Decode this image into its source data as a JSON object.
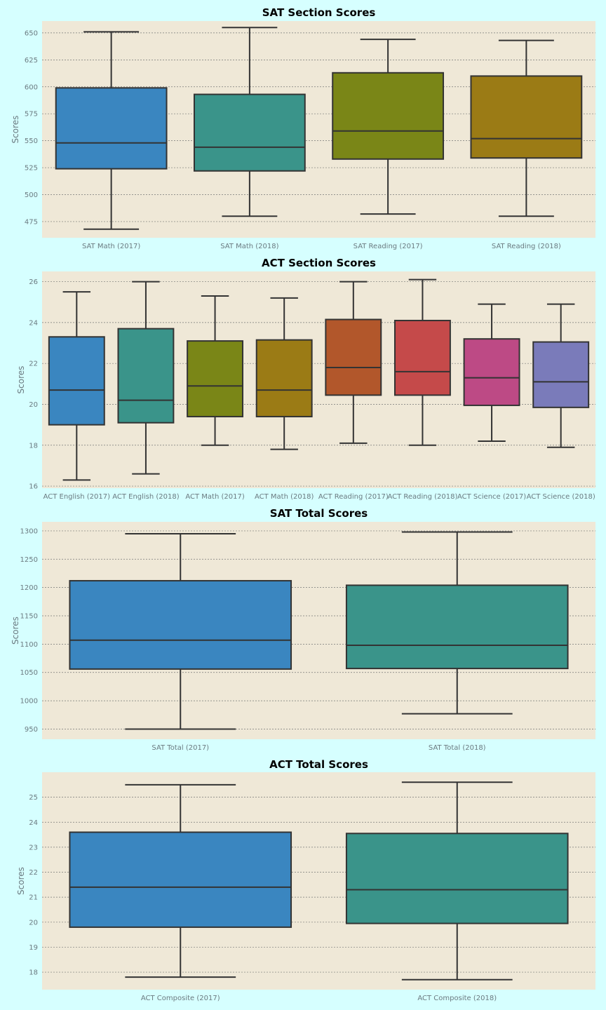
{
  "chart_data": [
    {
      "type": "box",
      "title": "SAT Section Scores",
      "ylabel": "Scores",
      "ylim": [
        460,
        661
      ],
      "yticks": [
        475,
        500,
        525,
        550,
        575,
        600,
        625,
        650
      ],
      "grid": true,
      "boxes": [
        {
          "label": "SAT Math (2017)",
          "min": 468,
          "q1": 524,
          "median": 548,
          "q3": 599,
          "max": 651,
          "color": "#3a86c0"
        },
        {
          "label": "SAT Math (2018)",
          "min": 480,
          "q1": 522,
          "median": 544,
          "q3": 593,
          "max": 655,
          "color": "#3a948a"
        },
        {
          "label": "SAT Reading (2017)",
          "min": 482,
          "q1": 533,
          "median": 559,
          "q3": 613,
          "max": 644,
          "color": "#7a8617"
        },
        {
          "label": "SAT Reading (2018)",
          "min": 480,
          "q1": 534,
          "median": 552,
          "q3": 610,
          "max": 643,
          "color": "#9b7b15"
        }
      ]
    },
    {
      "type": "box",
      "title": "ACT Section Scores",
      "ylabel": "Scores",
      "ylim": [
        15.9,
        26.5
      ],
      "yticks": [
        16,
        18,
        20,
        22,
        24,
        26
      ],
      "grid": true,
      "boxes": [
        {
          "label": "ACT English (2017)",
          "min": 16.3,
          "q1": 19.0,
          "median": 20.7,
          "q3": 23.3,
          "max": 25.5,
          "color": "#3a86c0"
        },
        {
          "label": "ACT English (2018)",
          "min": 16.6,
          "q1": 19.1,
          "median": 20.2,
          "q3": 23.7,
          "max": 26.0,
          "color": "#3a948a"
        },
        {
          "label": "ACT Math (2017)",
          "min": 18.0,
          "q1": 19.4,
          "median": 20.9,
          "q3": 23.1,
          "max": 25.3,
          "color": "#7a8617"
        },
        {
          "label": "ACT Math (2018)",
          "min": 17.8,
          "q1": 19.4,
          "median": 20.7,
          "q3": 23.15,
          "max": 25.2,
          "color": "#9b7b15"
        },
        {
          "label": "ACT Reading (2017)",
          "min": 18.1,
          "q1": 20.45,
          "median": 21.8,
          "q3": 24.15,
          "max": 26.0,
          "color": "#b2572b"
        },
        {
          "label": "ACT Reading (2018)",
          "min": 18.0,
          "q1": 20.45,
          "median": 21.6,
          "q3": 24.1,
          "max": 26.1,
          "color": "#c54a4a"
        },
        {
          "label": "ACT Science (2017)",
          "min": 18.2,
          "q1": 19.95,
          "median": 21.3,
          "q3": 23.2,
          "max": 24.9,
          "color": "#bd4a85"
        },
        {
          "label": "ACT Science (2018)",
          "min": 17.9,
          "q1": 19.85,
          "median": 21.1,
          "q3": 23.05,
          "max": 24.9,
          "color": "#7a7bba"
        }
      ]
    },
    {
      "type": "box",
      "title": "SAT Total Scores",
      "ylabel": "Scores",
      "ylim": [
        932,
        1316
      ],
      "yticks": [
        950,
        1000,
        1050,
        1100,
        1150,
        1200,
        1250,
        1300
      ],
      "grid": true,
      "boxes": [
        {
          "label": "SAT Total (2017)",
          "min": 950,
          "q1": 1056,
          "median": 1107,
          "q3": 1212,
          "max": 1295,
          "color": "#3a86c0"
        },
        {
          "label": "SAT Total (2018)",
          "min": 977,
          "q1": 1057,
          "median": 1098,
          "q3": 1204,
          "max": 1298,
          "color": "#3a948a"
        }
      ]
    },
    {
      "type": "box",
      "title": "ACT Total Scores",
      "ylabel": "Scores",
      "ylim": [
        17.3,
        26.0
      ],
      "yticks": [
        18,
        19,
        20,
        21,
        22,
        23,
        24,
        25
      ],
      "grid": true,
      "boxes": [
        {
          "label": "ACT Composite (2017)",
          "min": 17.8,
          "q1": 19.8,
          "median": 21.4,
          "q3": 23.6,
          "max": 25.5,
          "color": "#3a86c0"
        },
        {
          "label": "ACT Composite (2018)",
          "min": 17.7,
          "q1": 19.95,
          "median": 21.3,
          "q3": 23.55,
          "max": 25.6,
          "color": "#3a948a"
        }
      ]
    }
  ]
}
